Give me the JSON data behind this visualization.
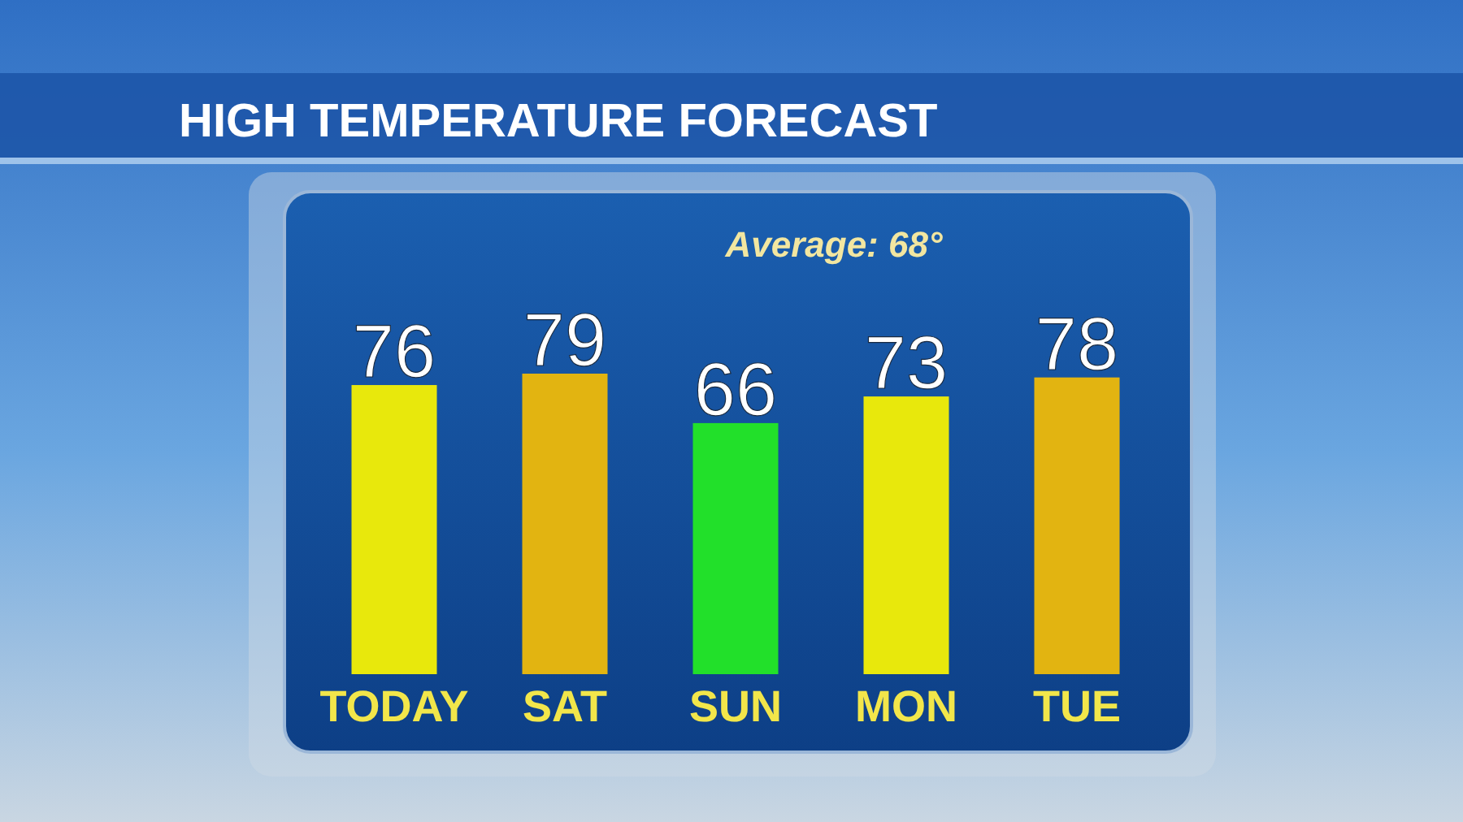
{
  "chart_data": {
    "type": "bar",
    "title": "HIGH TEMPERATURE FORECAST",
    "categories": [
      "TODAY",
      "SAT",
      "SUN",
      "MON",
      "TUE"
    ],
    "values": [
      76,
      79,
      66,
      73,
      78
    ],
    "colors": [
      "#e8e80c",
      "#e2b411",
      "#22e02a",
      "#e8e80c",
      "#e2b411"
    ],
    "tick_labels": "x",
    "data_labels": true,
    "annotations": [
      "Average: 68°"
    ]
  }
}
